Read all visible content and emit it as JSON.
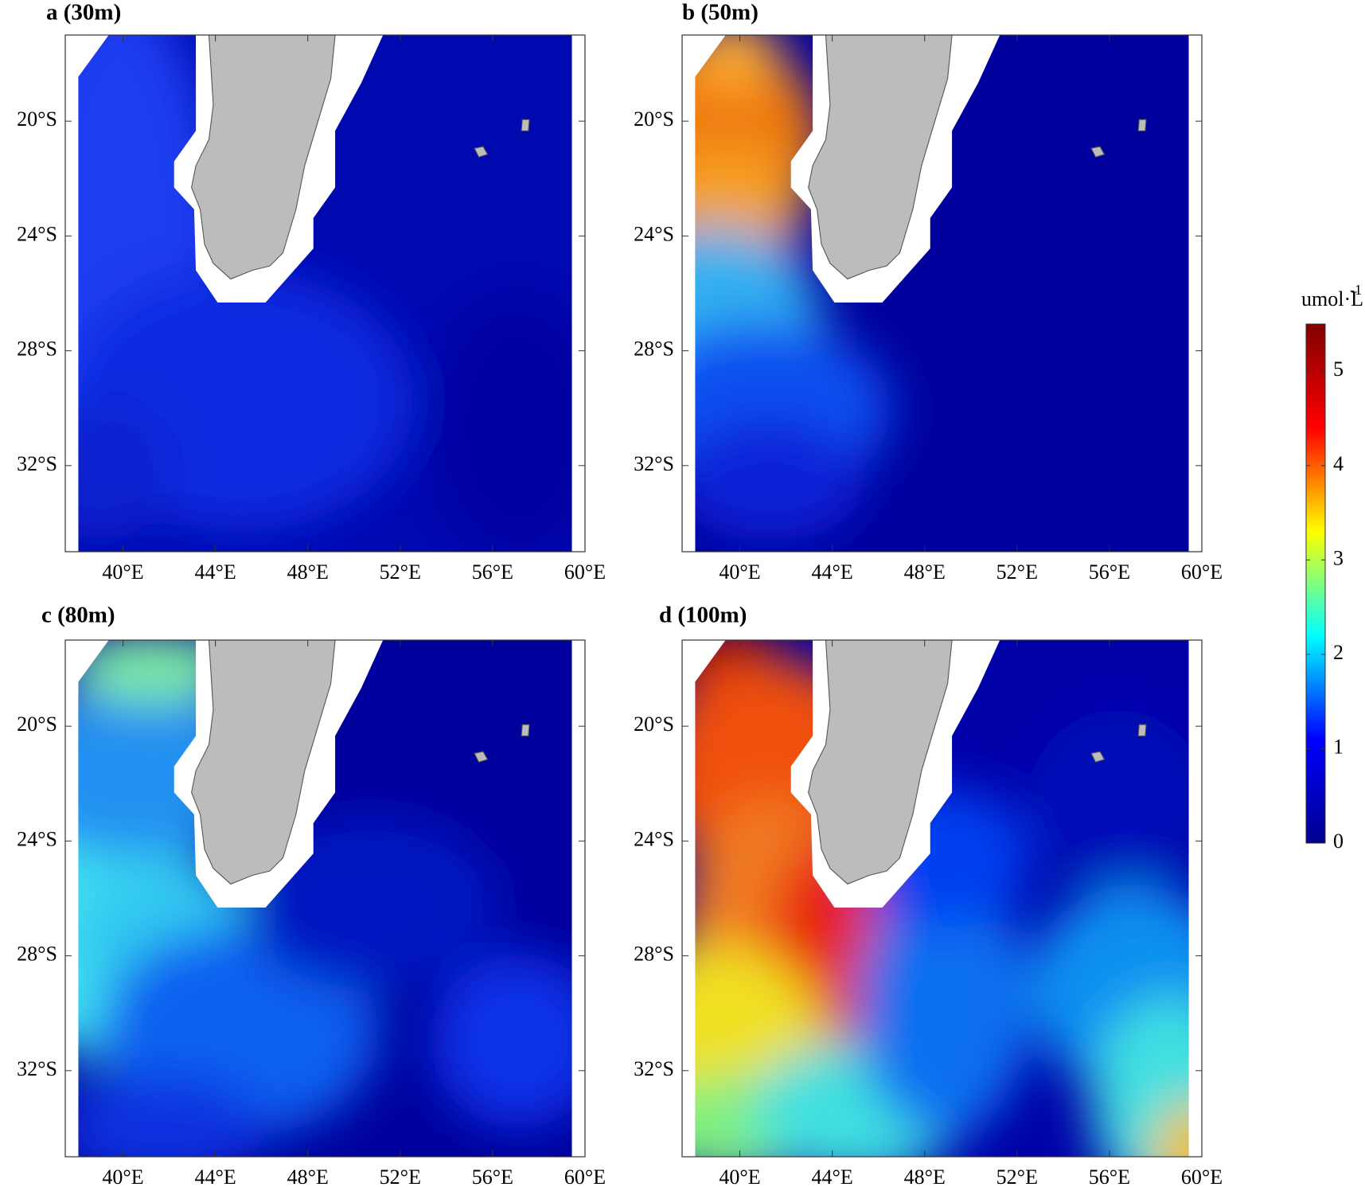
{
  "chart_data": [
    {
      "type": "contour",
      "title": "a (30m)",
      "xlim": [
        37.5,
        60
      ],
      "ylim": [
        -35,
        -17
      ],
      "xticks": [
        {
          "value": 40,
          "label": "40°E"
        },
        {
          "value": 44,
          "label": "44°E"
        },
        {
          "value": 48,
          "label": "48°E"
        },
        {
          "value": 52,
          "label": "52°E"
        },
        {
          "value": 56,
          "label": "56°E"
        },
        {
          "value": 60,
          "label": "60°E"
        }
      ],
      "yticks": [
        {
          "value": -20,
          "label": "20°S"
        },
        {
          "value": -24,
          "label": "24°S"
        },
        {
          "value": -28,
          "label": "28°S"
        },
        {
          "value": -32,
          "label": "32°S"
        }
      ]
    },
    {
      "type": "contour",
      "title": "b (50m)",
      "xlim": [
        37.5,
        60
      ],
      "ylim": [
        -35,
        -17
      ],
      "xticks": [
        {
          "value": 40,
          "label": "40°E"
        },
        {
          "value": 44,
          "label": "44°E"
        },
        {
          "value": 48,
          "label": "48°E"
        },
        {
          "value": 52,
          "label": "52°E"
        },
        {
          "value": 56,
          "label": "56°E"
        },
        {
          "value": 60,
          "label": "60°E"
        }
      ],
      "yticks": [
        {
          "value": -20,
          "label": "20°S"
        },
        {
          "value": -24,
          "label": "24°S"
        },
        {
          "value": -28,
          "label": "28°S"
        },
        {
          "value": -32,
          "label": "32°S"
        }
      ]
    },
    {
      "type": "contour",
      "title": "c (80m)",
      "xlim": [
        37.5,
        60
      ],
      "ylim": [
        -35,
        -17
      ],
      "xticks": [
        {
          "value": 40,
          "label": "40°E"
        },
        {
          "value": 44,
          "label": "44°E"
        },
        {
          "value": 48,
          "label": "48°E"
        },
        {
          "value": 52,
          "label": "52°E"
        },
        {
          "value": 56,
          "label": "56°E"
        },
        {
          "value": 60,
          "label": "60°E"
        }
      ],
      "yticks": [
        {
          "value": -20,
          "label": "20°S"
        },
        {
          "value": -24,
          "label": "24°S"
        },
        {
          "value": -28,
          "label": "28°S"
        },
        {
          "value": -32,
          "label": "32°S"
        }
      ]
    },
    {
      "type": "contour",
      "title": "d (100m)",
      "xlim": [
        37.5,
        60
      ],
      "ylim": [
        -35,
        -17
      ],
      "xticks": [
        {
          "value": 40,
          "label": "40°E"
        },
        {
          "value": 44,
          "label": "44°E"
        },
        {
          "value": 48,
          "label": "48°E"
        },
        {
          "value": 52,
          "label": "52°E"
        },
        {
          "value": 56,
          "label": "56°E"
        },
        {
          "value": 60,
          "label": "60°E"
        }
      ],
      "yticks": [
        {
          "value": -20,
          "label": "20°S"
        },
        {
          "value": -24,
          "label": "24°S"
        },
        {
          "value": -28,
          "label": "28°S"
        },
        {
          "value": -32,
          "label": "32°S"
        }
      ]
    }
  ],
  "colorbar": {
    "label": "umol·L",
    "label_exponent": "-1",
    "colormap": "jet",
    "lim": [
      0,
      5.5
    ],
    "ticks": [
      0,
      1,
      2,
      3,
      4,
      5
    ]
  }
}
